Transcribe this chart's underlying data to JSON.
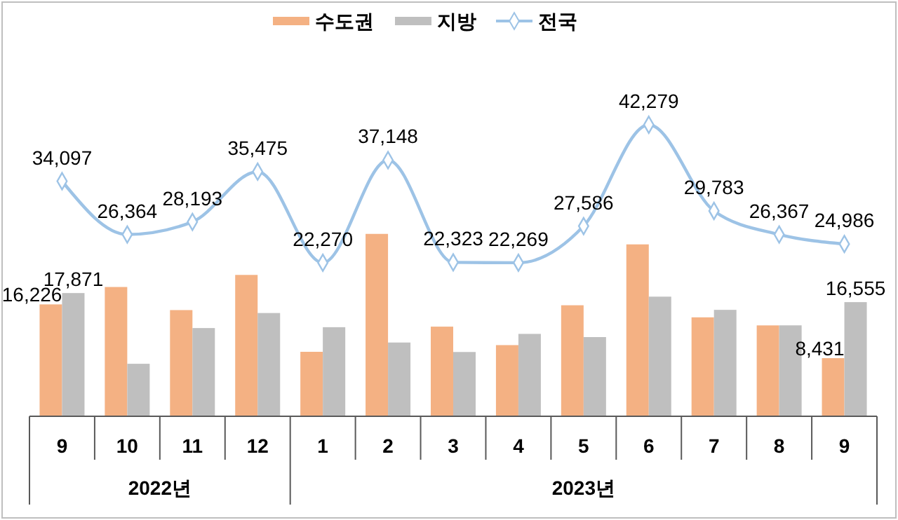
{
  "chart_data": {
    "type": "bar",
    "categories": [
      "9",
      "10",
      "11",
      "12",
      "1",
      "2",
      "3",
      "4",
      "5",
      "6",
      "7",
      "8",
      "9"
    ],
    "series": [
      {
        "name": "수도권",
        "color": "#f4b183",
        "values": [
          16226,
          18750,
          15400,
          20500,
          9350,
          26450,
          13000,
          10320,
          16100,
          24930,
          14350,
          13180,
          8431
        ],
        "value_labels": [
          "16,226",
          null,
          null,
          null,
          null,
          null,
          null,
          null,
          null,
          null,
          null,
          null,
          "8,431"
        ]
      },
      {
        "name": "지방",
        "color": "#bfbfbf",
        "values": [
          17871,
          7614,
          12793,
          14975,
          12920,
          10698,
          9323,
          11949,
          11486,
          17349,
          15433,
          13187,
          16555
        ],
        "value_labels": [
          "17,871",
          null,
          null,
          null,
          null,
          null,
          null,
          null,
          null,
          null,
          null,
          null,
          "16,555"
        ]
      },
      {
        "name": "전국",
        "type": "line",
        "color": "#9dc3e6",
        "values": [
          34097,
          26364,
          28193,
          35475,
          22270,
          37148,
          22323,
          22269,
          27586,
          42279,
          29783,
          26367,
          24986
        ],
        "value_labels": [
          "34,097",
          "26,364",
          "28,193",
          "35,475",
          "22,270",
          "37,148",
          "22,323",
          "22,269",
          "27,586",
          "42,279",
          "29,783",
          "26,367",
          "24,986"
        ]
      }
    ],
    "annotations": [
      "2022년",
      "2023년"
    ],
    "tick_labels": "x",
    "marker": "diamond",
    "legend": "top"
  }
}
